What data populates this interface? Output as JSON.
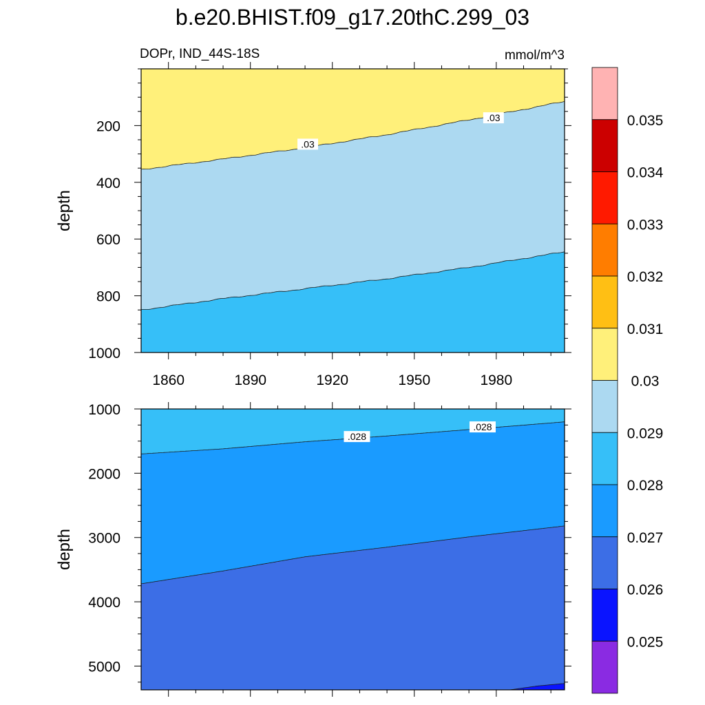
{
  "title": "b.e20.BHIST.f09_g17.20thC.299_03",
  "subtitle_left": "DOPr, IND_44S-18S",
  "subtitle_right": "mmol/m^3",
  "colors": {
    "bin_below_0025": "#8a2be2",
    "bin_0025_0026": "#0a14ff",
    "bin_0026_0027": "#3c6ee6",
    "bin_0027_0028": "#1a9bff",
    "bin_0028_0029": "#36bff8",
    "bin_0029_003": "#acd9f1",
    "bin_003_0031": "#fff07a",
    "bin_0031_0032": "#ffbf14",
    "bin_0032_0033": "#ff7d00",
    "bin_0033_0034": "#ff1a00",
    "bin_0034_0035": "#cc0000",
    "bin_above_0035": "#ffb3b3"
  },
  "chart_data": [
    {
      "type": "heatmap",
      "panel": "upper",
      "ylabel": "depth",
      "xlim": [
        1850,
        2005
      ],
      "ylim": [
        1000,
        0
      ],
      "x_ticks": [
        1860,
        1890,
        1920,
        1950,
        1980
      ],
      "y_ticks": [
        200,
        400,
        600,
        800,
        1000
      ],
      "contours": [
        {
          "level": 0.03,
          "label": ".03",
          "depth_at_x": [
            [
              1850,
              355
            ],
            [
              1880,
              318
            ],
            [
              1910,
              278
            ],
            [
              1940,
              232
            ],
            [
              1970,
              180
            ],
            [
              2005,
              115
            ]
          ]
        },
        {
          "level": 0.029,
          "label": "",
          "depth_at_x": [
            [
              1850,
              850
            ],
            [
              1880,
              810
            ],
            [
              1910,
              775
            ],
            [
              1940,
              740
            ],
            [
              1970,
              700
            ],
            [
              2005,
              645
            ]
          ]
        }
      ],
      "contour_labels": [
        {
          "text": ".03",
          "x": 1911,
          "depth": 268
        },
        {
          "text": ".03",
          "x": 1979,
          "depth": 175
        }
      ],
      "regions": [
        "bin_003_0031",
        "bin_0029_003",
        "bin_0028_0029"
      ]
    },
    {
      "type": "heatmap",
      "panel": "lower",
      "ylabel": "depth",
      "xlim": [
        1850,
        2005
      ],
      "ylim": [
        5370,
        1000
      ],
      "y_ticks": [
        1000,
        2000,
        3000,
        4000,
        5000
      ],
      "contours": [
        {
          "level": 0.028,
          "label": ".028",
          "depth_at_x": [
            [
              1850,
              1700
            ],
            [
              1880,
              1620
            ],
            [
              1910,
              1510
            ],
            [
              1940,
              1420
            ],
            [
              1970,
              1320
            ],
            [
              2005,
              1200
            ]
          ]
        },
        {
          "level": 0.027,
          "label": "",
          "depth_at_x": [
            [
              1850,
              3720
            ],
            [
              1880,
              3520
            ],
            [
              1910,
              3300
            ],
            [
              1940,
              3150
            ],
            [
              1970,
              2990
            ],
            [
              2005,
              2820
            ]
          ]
        },
        {
          "level": 0.026,
          "label": "",
          "depth_at_x": [
            [
              1985,
              5370
            ],
            [
              1995,
              5310
            ],
            [
              2005,
              5270
            ]
          ]
        }
      ],
      "contour_labels": [
        {
          "text": ".028",
          "x": 1929,
          "depth": 1440
        },
        {
          "text": ".028",
          "x": 1975,
          "depth": 1290
        }
      ],
      "regions": [
        "bin_0028_0029",
        "bin_0027_0028",
        "bin_0026_0027",
        "bin_0025_0026"
      ]
    },
    {
      "type": "colorbar",
      "labels": [
        "0.025",
        "0.026",
        "0.027",
        "0.028",
        "0.029",
        "0.03",
        "0.031",
        "0.032",
        "0.033",
        "0.034",
        "0.035"
      ],
      "boxes": [
        "bin_below_0025",
        "bin_0025_0026",
        "bin_0026_0027",
        "bin_0027_0028",
        "bin_0028_0029",
        "bin_0029_003",
        "bin_003_0031",
        "bin_0031_0032",
        "bin_0032_0033",
        "bin_0033_0034",
        "bin_0034_0035",
        "bin_above_0035"
      ]
    }
  ]
}
